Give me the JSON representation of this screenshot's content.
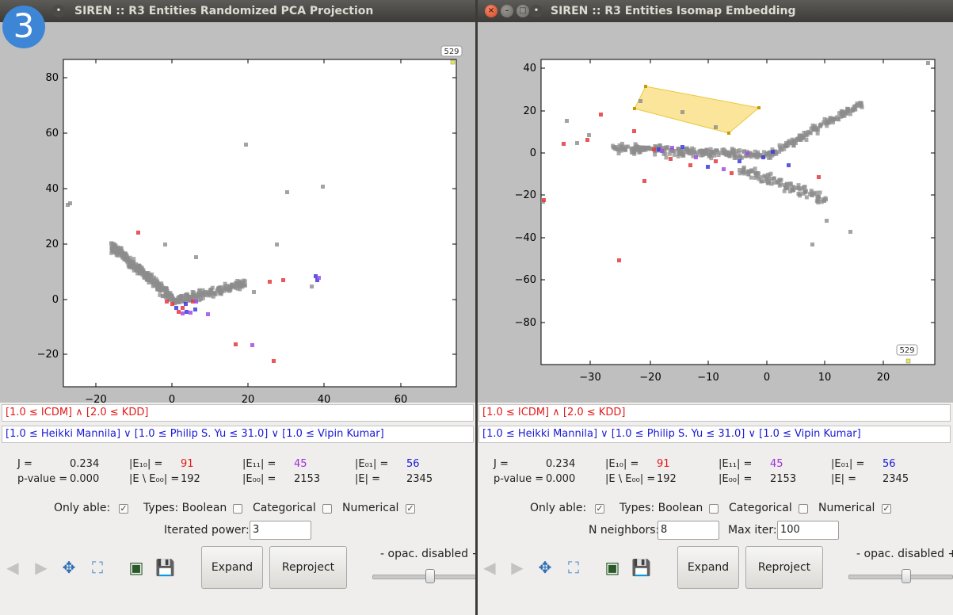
{
  "badge": "3",
  "windows": [
    {
      "title": "SIREN :: R3 Entities Randomized PCA Projection",
      "yticks": [
        "80",
        "60",
        "40",
        "20",
        "0",
        "−20"
      ],
      "xticks": [
        "−20",
        "0",
        "20",
        "40",
        "60"
      ],
      "highlight_label": "529",
      "red_query": "[1.0 ≤ ICDM] ∧   [2.0 ≤ KDD]",
      "blue_query": "[1.0 ≤ Heikki Mannila] ∨   [1.0 ≤ Philip S. Yu ≤ 31.0] ∨   [1.0 ≤ Vipin Kumar]",
      "stats": {
        "j_label": "J =",
        "j_value": "0.234",
        "p_label": "p-value =",
        "p_value": "0.000",
        "e10_label": "|E₁₀| =",
        "e10_value": "91",
        "e_minus_label": "|E \\ E₀₀| =",
        "e_minus_value": "192",
        "e11_label": "|E₁₁| =",
        "e11_value": "45",
        "e00_label": "|E₀₀| =",
        "e00_value": "2153",
        "e01_label": "|E₀₁| =",
        "e01_value": "56",
        "e_label": "|E| =",
        "e_value": "2345"
      },
      "options": {
        "only_able": "Only able:",
        "types": "Types: Boolean",
        "categorical": "Categorical",
        "numerical": "Numerical",
        "param1_label": "Iterated power:",
        "param1_value": "3"
      },
      "buttons": {
        "expand": "Expand",
        "reproject": "Reproject"
      },
      "opacity": "-  opac. disabled  +"
    },
    {
      "title": "SIREN :: R3 Entities Isomap Embedding",
      "yticks": [
        "40",
        "20",
        "0",
        "−20",
        "−40",
        "−60",
        "−80"
      ],
      "xticks": [
        "−30",
        "−20",
        "−10",
        "0",
        "10",
        "20"
      ],
      "highlight_label": "529",
      "red_query": "[1.0 ≤ ICDM] ∧   [2.0 ≤ KDD]",
      "blue_query": "[1.0 ≤ Heikki Mannila] ∨   [1.0 ≤ Philip S. Yu ≤ 31.0] ∨   [1.0 ≤ Vipin Kumar]",
      "stats": {
        "j_label": "J =",
        "j_value": "0.234",
        "p_label": "p-value =",
        "p_value": "0.000",
        "e10_label": "|E₁₀| =",
        "e10_value": "91",
        "e_minus_label": "|E \\ E₀₀| =",
        "e_minus_value": "192",
        "e11_label": "|E₁₁| =",
        "e11_value": "45",
        "e00_label": "|E₀₀| =",
        "e00_value": "2153",
        "e01_label": "|E₀₁| =",
        "e01_value": "56",
        "e_label": "|E| =",
        "e_value": "2345"
      },
      "options": {
        "only_able": "Only able:",
        "types": "Types: Boolean",
        "categorical": "Categorical",
        "numerical": "Numerical",
        "param1_label": "N neighbors:",
        "param1_value": "8",
        "param2_label": "Max iter:",
        "param2_value": "100"
      },
      "buttons": {
        "expand": "Expand",
        "reproject": "Reproject"
      },
      "opacity": "-  opac. disabled  +"
    }
  ],
  "colors": {
    "gray_points": "#8c8c8c",
    "red_points": "#e8383d",
    "blue_points": "#3c3ce0",
    "purple_points": "#a24ee6",
    "polygon_fill": "#f9dd7a",
    "polygon_stroke": "#e2b800"
  },
  "icons": [
    "back-arrow-icon",
    "forward-arrow-icon",
    "pan-icon",
    "zoom-select-icon",
    "subplot-icon",
    "save-icon"
  ]
}
